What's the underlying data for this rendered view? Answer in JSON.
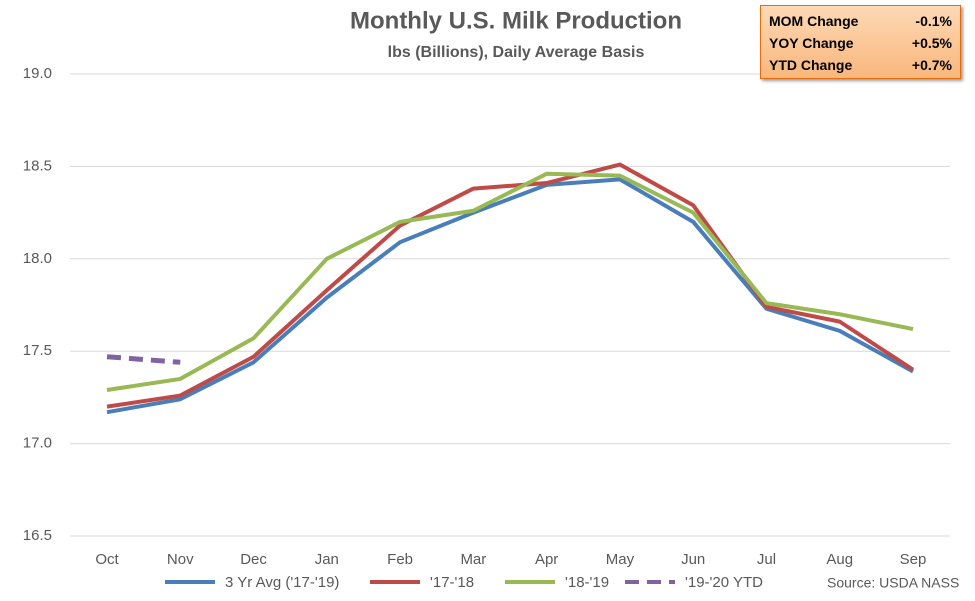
{
  "chart_data": {
    "type": "line",
    "title": "Monthly U.S. Milk Production",
    "subtitle": "lbs (Billions), Daily Average Basis",
    "categories": [
      "Oct",
      "Nov",
      "Dec",
      "Jan",
      "Feb",
      "Mar",
      "Apr",
      "May",
      "Jun",
      "Jul",
      "Aug",
      "Sep"
    ],
    "series": [
      {
        "name": "3 Yr Avg ('17-'19)",
        "color": "#4a7ebb",
        "values": [
          17.17,
          17.24,
          17.44,
          17.79,
          18.09,
          18.25,
          18.4,
          18.43,
          18.2,
          17.73,
          17.61,
          17.39
        ]
      },
      {
        "name": "'17-'18",
        "color": "#be4b48",
        "values": [
          17.2,
          17.26,
          17.47,
          17.83,
          18.18,
          18.38,
          18.41,
          18.51,
          18.29,
          17.74,
          17.66,
          17.4
        ]
      },
      {
        "name": "'18-'19",
        "color": "#98b954",
        "values": [
          17.29,
          17.35,
          17.57,
          18.0,
          18.2,
          18.26,
          18.46,
          18.45,
          18.25,
          17.76,
          17.7,
          17.62
        ]
      },
      {
        "name": "'19-'20 YTD",
        "color": "#8064a2",
        "dashed": true,
        "values": [
          17.47,
          17.44,
          null,
          null,
          null,
          null,
          null,
          null,
          null,
          null,
          null,
          null
        ]
      }
    ],
    "ylim": [
      16.5,
      19.0
    ],
    "yticks": [
      {
        "value": 16.5,
        "label": "16.5"
      },
      {
        "value": 17.0,
        "label": "17.0"
      },
      {
        "value": 17.5,
        "label": "17.5"
      },
      {
        "value": 18.0,
        "label": "18.0"
      },
      {
        "value": 18.5,
        "label": "18.5"
      },
      {
        "value": 19.0,
        "label": "19.0"
      }
    ],
    "grid": true,
    "legend": "bottom",
    "source": "Source: USDA NASS"
  },
  "info_box": {
    "rows": [
      {
        "label": "MOM Change",
        "value": "-0.1%"
      },
      {
        "label": "YOY Change",
        "value": "+0.5%"
      },
      {
        "label": "YTD Change",
        "value": "+0.7%"
      }
    ]
  }
}
